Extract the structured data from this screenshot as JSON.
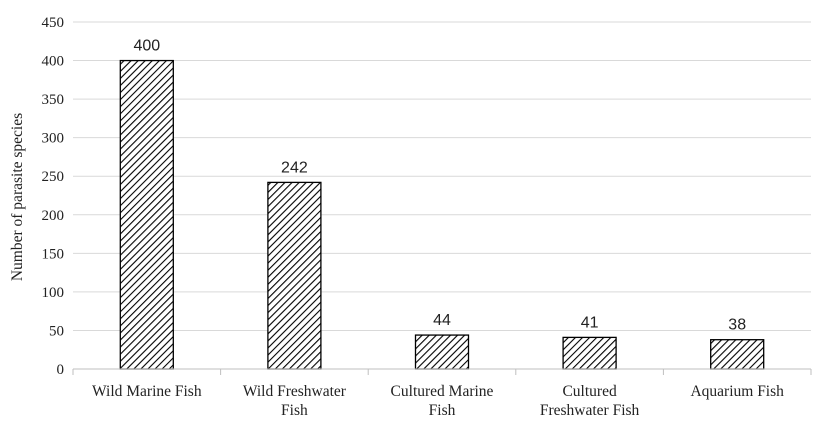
{
  "chart_data": {
    "type": "bar",
    "categories": [
      [
        "Wild Marine Fish"
      ],
      [
        "Wild Freshwater",
        "Fish"
      ],
      [
        "Cultured Marine",
        "Fish"
      ],
      [
        "Cultured",
        "Freshwater Fish"
      ],
      [
        "Aquarium Fish"
      ]
    ],
    "values": [
      400,
      242,
      44,
      41,
      38
    ],
    "data_labels": [
      "400",
      "242",
      "44",
      "41",
      "38"
    ],
    "ylabel": "Number of parasite species",
    "ylim": [
      0,
      450
    ],
    "yticks": [
      0,
      50,
      100,
      150,
      200,
      250,
      300,
      350,
      400,
      450
    ],
    "grid": true,
    "bar_fill": "diagonal-hatch",
    "colors": {
      "bar_stroke": "#000000",
      "hatch": "#000000",
      "grid": "#d9d9d9",
      "axis": "#bfbfbf"
    }
  }
}
